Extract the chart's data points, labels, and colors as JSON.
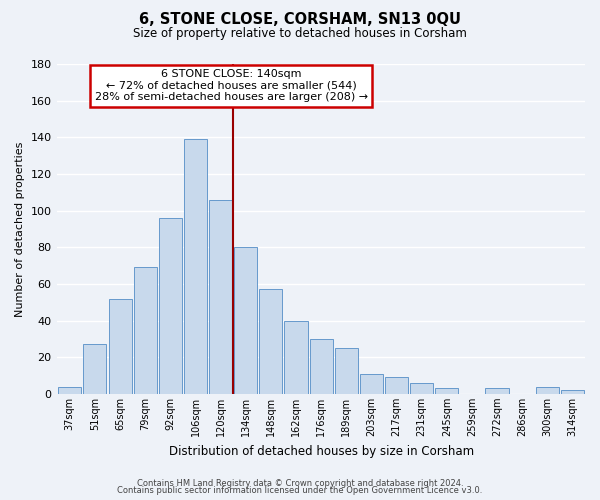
{
  "title": "6, STONE CLOSE, CORSHAM, SN13 0QU",
  "subtitle": "Size of property relative to detached houses in Corsham",
  "xlabel": "Distribution of detached houses by size in Corsham",
  "ylabel": "Number of detached properties",
  "bar_labels": [
    "37sqm",
    "51sqm",
    "65sqm",
    "79sqm",
    "92sqm",
    "106sqm",
    "120sqm",
    "134sqm",
    "148sqm",
    "162sqm",
    "176sqm",
    "189sqm",
    "203sqm",
    "217sqm",
    "231sqm",
    "245sqm",
    "259sqm",
    "272sqm",
    "286sqm",
    "300sqm",
    "314sqm"
  ],
  "bar_values": [
    4,
    27,
    52,
    69,
    96,
    139,
    106,
    80,
    57,
    40,
    30,
    25,
    11,
    9,
    6,
    3,
    0,
    3,
    0,
    4,
    2
  ],
  "bar_color": "#c8d9ec",
  "bar_edge_color": "#6699cc",
  "property_line_label": "6 STONE CLOSE: 140sqm",
  "smaller_pct": "72%",
  "smaller_count": 544,
  "larger_pct": "28%",
  "larger_count": 208,
  "annotation_box_color": "#ffffff",
  "annotation_box_edge": "#cc0000",
  "vline_color": "#990000",
  "ylim": [
    0,
    180
  ],
  "yticks": [
    0,
    20,
    40,
    60,
    80,
    100,
    120,
    140,
    160,
    180
  ],
  "footer1": "Contains HM Land Registry data © Crown copyright and database right 2024.",
  "footer2": "Contains public sector information licensed under the Open Government Licence v3.0.",
  "background_color": "#eef2f8",
  "grid_color": "#ffffff"
}
